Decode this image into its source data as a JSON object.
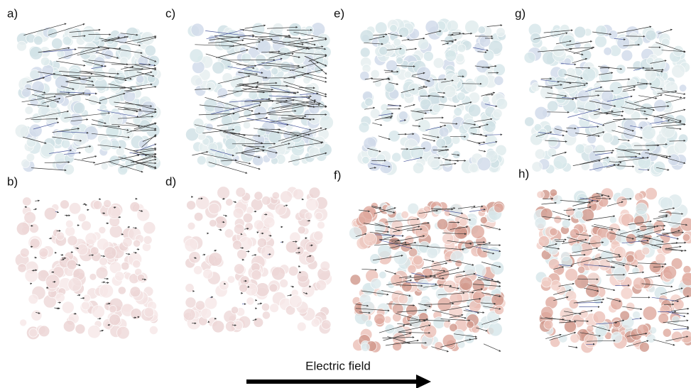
{
  "panels": [
    {
      "label": "a)"
    },
    {
      "label": "b)"
    },
    {
      "label": "c)"
    },
    {
      "label": "d)"
    },
    {
      "label": "e)"
    },
    {
      "label": "f)"
    },
    {
      "label": "g)"
    },
    {
      "label": "h)"
    }
  ],
  "field": {
    "label": "Electric field"
  }
}
